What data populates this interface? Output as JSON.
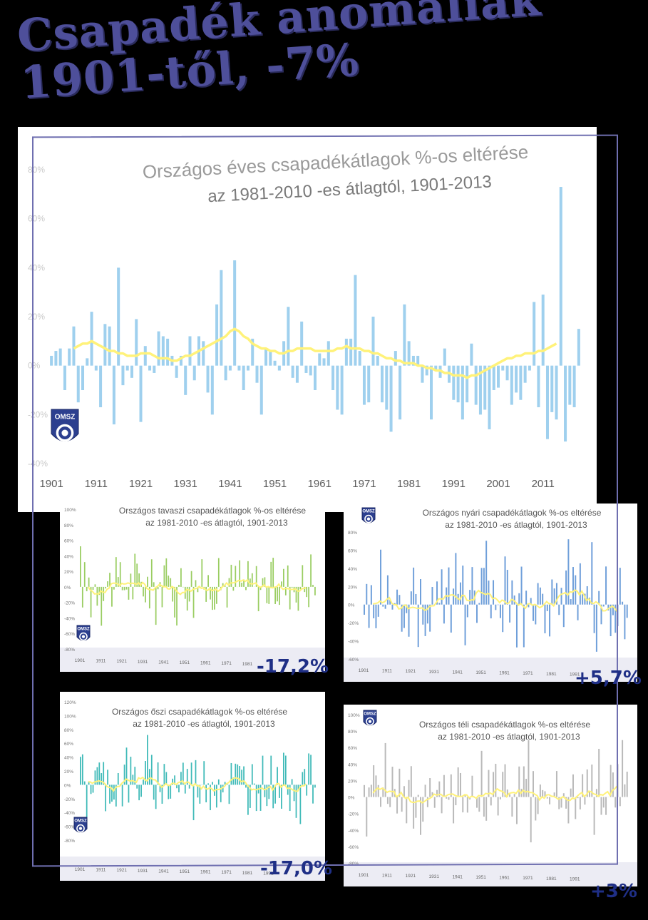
{
  "headline": {
    "line1": "Csapadék anomáliák",
    "line2": "1901-től, -7%"
  },
  "colors": {
    "annual_bars": "#9fd0ee",
    "spring_bars": "#9acd62",
    "summer_bars": "#6f9fda",
    "autumn_bars": "#3fbab8",
    "winter_bars": "#b9b9b9",
    "moving_avg": "#fff27a",
    "headline": "#4e4f9a",
    "badge": "#1f2f86"
  },
  "logo_text": "OMSZ",
  "chart_data": [
    {
      "id": "annual",
      "type": "bar",
      "title_line1": "Országos éves csapadékátlagok %-os eltérése",
      "title_line2": "az 1981-2010 -es átlagtól, 1901-2013",
      "yticks": [
        "80%",
        "60%",
        "40%",
        "20%",
        "0%",
        "-20%",
        "-40%"
      ],
      "xticks": [
        "1901",
        "1911",
        "1921",
        "1931",
        "1941",
        "1951",
        "1961",
        "1971",
        "1981",
        "1991",
        "2001",
        "2011"
      ],
      "ylim": [
        -40,
        80
      ],
      "xlim": [
        1901,
        2013
      ],
      "x_start": 1901,
      "values": [
        4,
        6,
        7,
        -10,
        7,
        16,
        -15,
        -10,
        3,
        22,
        -2,
        -17,
        17,
        16,
        -24,
        40,
        -8,
        -2,
        -5,
        19,
        -23,
        8,
        -2,
        -3,
        14,
        12,
        11,
        4,
        -5,
        4,
        -12,
        12,
        -6,
        12,
        10,
        -11,
        -20,
        25,
        39,
        -6,
        -2,
        43,
        -2,
        -10,
        -2,
        11,
        -7,
        -20,
        7,
        6,
        2,
        -2,
        10,
        24,
        -5,
        -7,
        18,
        -3,
        -4,
        -10,
        5,
        3,
        10,
        -10,
        -18,
        -20,
        11,
        11,
        37,
        6,
        -16,
        -15,
        20,
        4,
        -15,
        -18,
        -27,
        6,
        -22,
        25,
        10,
        4,
        4,
        -7,
        -4,
        -22,
        -2,
        -5,
        7,
        -7,
        -14,
        -15,
        -22,
        -15,
        9,
        -16,
        -20,
        -18,
        -26,
        -10,
        -9,
        -2,
        -6,
        -16,
        -11,
        -14,
        -7,
        -2,
        26,
        -17,
        29,
        -30,
        -19,
        -22,
        73,
        -31,
        -16,
        -17,
        15
      ],
      "moving_avg": [
        2,
        2,
        2,
        3,
        4,
        5,
        6,
        7,
        8,
        9,
        9,
        8,
        7,
        7,
        6,
        5,
        6,
        5,
        4,
        5,
        5,
        4,
        4,
        3,
        3,
        2,
        2,
        3,
        4,
        5,
        6,
        7,
        8,
        9,
        9,
        10,
        10,
        12,
        14,
        15,
        14,
        12,
        10,
        9,
        8,
        8,
        7,
        6,
        5,
        5,
        5,
        5,
        6,
        6,
        7,
        8,
        8,
        8,
        7,
        6,
        6,
        6,
        6,
        7,
        7,
        7,
        7,
        7,
        8,
        7,
        6,
        5,
        5,
        5,
        4,
        3,
        3,
        3,
        3,
        3,
        2,
        2,
        1,
        0,
        -1,
        -2,
        -2,
        -3,
        -3,
        -3,
        -4,
        -4,
        -5,
        -5,
        -5,
        -4,
        -3,
        -2,
        -1,
        0,
        1,
        2,
        3,
        4,
        4,
        4,
        5,
        5,
        5,
        6,
        6,
        7,
        7,
        7,
        8,
        9,
        10,
        11,
        11
      ],
      "ma_fixed": [
        3,
        3,
        4,
        5,
        6,
        7,
        8,
        9,
        9,
        10,
        9,
        8,
        7,
        6,
        6,
        5,
        5,
        4,
        4,
        4,
        5,
        5,
        5,
        4,
        3,
        3,
        3,
        2,
        2,
        3,
        4,
        4,
        5,
        6,
        7,
        8,
        9,
        10,
        11,
        12,
        14,
        15,
        14,
        12,
        11,
        9,
        8,
        7,
        7,
        6,
        6,
        5,
        5,
        6,
        6,
        7,
        7,
        7,
        7,
        6,
        6,
        6,
        6,
        6,
        7,
        7,
        8,
        7,
        7,
        7,
        6,
        6,
        5,
        5,
        4,
        3,
        3,
        2,
        2,
        1,
        1,
        1,
        0,
        0,
        -1,
        -1,
        -2,
        -2,
        -3,
        -3,
        -4,
        -4,
        -4,
        -5,
        -4,
        -4,
        -3,
        -2,
        -1,
        0,
        1,
        2,
        3,
        3,
        4,
        4,
        5,
        5,
        5,
        6,
        6,
        7,
        8,
        9,
        10,
        11,
        11
      ]
    },
    {
      "id": "spring",
      "type": "bar",
      "title_line1": "Országos tavaszi csapadékátlagok %-os eltérése",
      "title_line2": "az 1981-2010 -es átlagtól, 1901-2013",
      "yticks": [
        "100%",
        "80%",
        "60%",
        "40%",
        "20%",
        "0%",
        "-20%",
        "-40%",
        "-60%",
        "-80%"
      ],
      "xticks": [
        "1901",
        "1911",
        "1921",
        "1931",
        "1941",
        "1951",
        "1961",
        "1971",
        "1981"
      ],
      "ylim": [
        -80,
        100
      ],
      "change": "-17,2%"
    },
    {
      "id": "summer",
      "type": "bar",
      "title_line1": "Országos nyári csapadékátlagok %-os eltérése",
      "title_line2": "az 1981-2010 -es átlagtól, 1901-2013",
      "yticks": [
        "80%",
        "60%",
        "40%",
        "20%",
        "0%",
        "-20%",
        "-40%",
        "-60%"
      ],
      "xticks": [
        "1901",
        "1911",
        "1921",
        "1931",
        "1941",
        "1951",
        "1961",
        "1971",
        "1981",
        "1991"
      ],
      "ylim": [
        -60,
        80
      ],
      "change": "+5,7%"
    },
    {
      "id": "autumn",
      "type": "bar",
      "title_line1": "Országos őszi csapadékátlagok %-os eltérése",
      "title_line2": "az 1981-2010 -es átlagtól, 1901-2013",
      "yticks": [
        "120%",
        "100%",
        "80%",
        "60%",
        "40%",
        "20%",
        "0%",
        "-20%",
        "-40%",
        "-60%",
        "-80%"
      ],
      "xticks": [
        "1901",
        "1911",
        "1921",
        "1931",
        "1941",
        "1951",
        "1961",
        "1971",
        "1981",
        "1991"
      ],
      "ylim": [
        -80,
        120
      ],
      "change": "-17,0%"
    },
    {
      "id": "winter",
      "type": "bar",
      "title_line1": "Országos téli csapadékátlagok %-os eltérése",
      "title_line2": "az 1981-2010 -es átlagtól, 1901-2013",
      "yticks": [
        "100%",
        "80%",
        "60%",
        "40%",
        "20%",
        "0%",
        "-20%",
        "-40%",
        "-60%",
        "-80%"
      ],
      "xticks": [
        "1901",
        "1911",
        "1921",
        "1931",
        "1941",
        "1951",
        "1961",
        "1971",
        "1981",
        "1991"
      ],
      "ylim": [
        -80,
        100
      ],
      "change": "+3%"
    }
  ]
}
